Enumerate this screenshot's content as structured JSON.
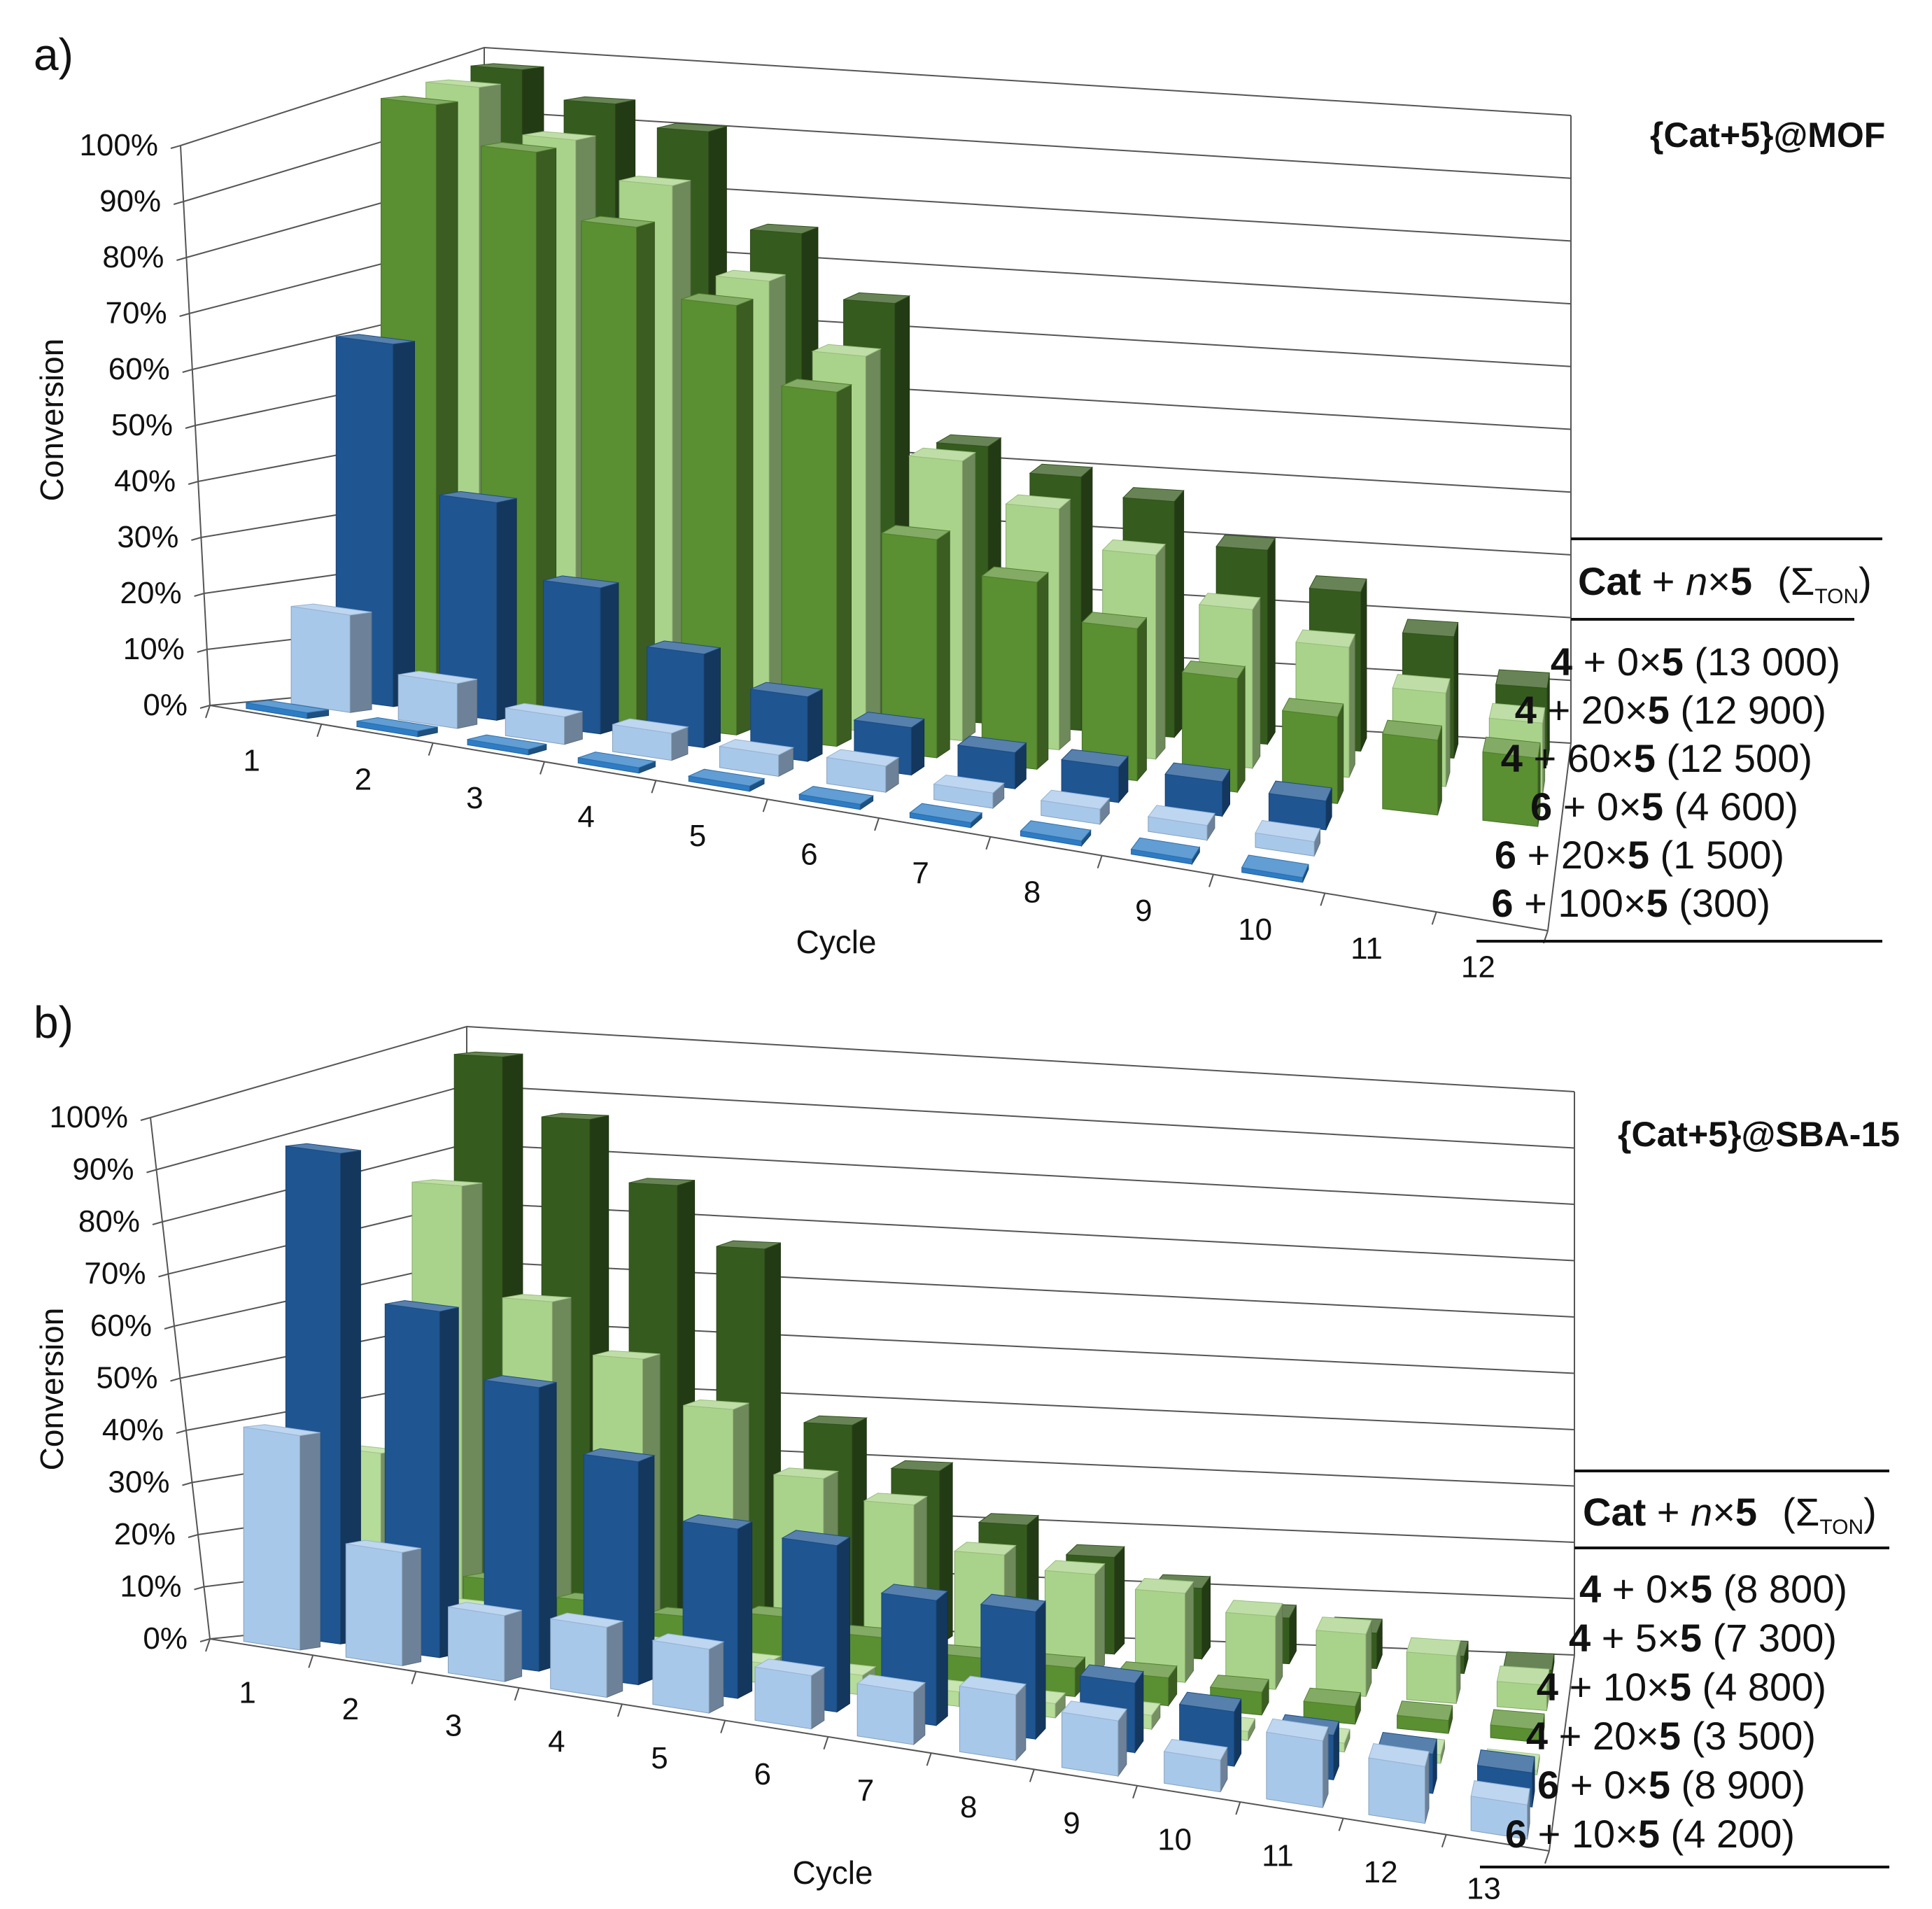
{
  "figure": {
    "panels": [
      {
        "letter": "a)",
        "title": "{Cat+5}@MOF",
        "legend_header": {
          "cat": "Cat",
          "plus": " + ",
          "n": "n",
          "times": "×",
          "five": "5",
          "sigma": "(Σ",
          "sub": "TON",
          "close": ")"
        },
        "legend_entries": [
          {
            "cat": "4",
            "mid": " + 0×",
            "five": "5",
            "ton": " (13 000)",
            "color": "#365b1f"
          },
          {
            "cat": "4",
            "mid": " + 20×",
            "five": "5",
            "ton": " (12 900)",
            "color": "#a9d38a"
          },
          {
            "cat": "4",
            "mid": " + 60×",
            "five": "5",
            "ton": " (12 500)",
            "color": "#5a8f32"
          },
          {
            "cat": "6",
            "mid": " + 0×",
            "five": "5",
            "ton": " (4 600)",
            "color": "#1f5591"
          },
          {
            "cat": "6",
            "mid": " + 20×",
            "five": "5",
            "ton": " (1 500)",
            "color": "#a8c8ea"
          },
          {
            "cat": "6",
            "mid": " + 100×",
            "five": "5",
            "ton": " (300)",
            "color": "#2e7cc4"
          }
        ]
      },
      {
        "letter": "b)",
        "title": "{Cat+5}@SBA-15",
        "legend_header": {
          "cat": "Cat",
          "plus": " + ",
          "n": "n",
          "times": "×",
          "five": "5",
          "sigma": "(Σ",
          "sub": "TON",
          "close": ")"
        },
        "legend_entries": [
          {
            "cat": "4",
            "mid": " + 0×",
            "five": "5",
            "ton": " (8 800)",
            "color": "#365b1f"
          },
          {
            "cat": "4",
            "mid": " + 5×",
            "five": "5",
            "ton": " (7 300)",
            "color": "#a9d38a"
          },
          {
            "cat": "4",
            "mid": " + 10×",
            "five": "5",
            "ton": " (4 800)",
            "color": "#5a8f32"
          },
          {
            "cat": "4",
            "mid": " + 20×",
            "five": "5",
            "ton": " (3 500)",
            "color": "#b5dc98"
          },
          {
            "cat": "6",
            "mid": " + 0×",
            "five": "5",
            "ton": " (8 900)",
            "color": "#1f5591"
          },
          {
            "cat": "6",
            "mid": " + 10×",
            "five": "5",
            "ton": " (4 200)",
            "color": "#a8c8ea"
          }
        ]
      }
    ]
  },
  "chart_data": [
    {
      "type": "bar",
      "subtype": "3d-clustered-depth",
      "title": "{Cat+5}@MOF",
      "xlabel": "Cycle",
      "ylabel": "Conversion",
      "ylim": [
        0,
        100
      ],
      "yticks": [
        "0%",
        "10%",
        "20%",
        "30%",
        "40%",
        "50%",
        "60%",
        "70%",
        "80%",
        "90%",
        "100%"
      ],
      "categories": [
        "1",
        "2",
        "3",
        "4",
        "5",
        "6",
        "7",
        "8",
        "9",
        "10",
        "11",
        "12"
      ],
      "series": [
        {
          "name": "4 + 0×5 (13 000)",
          "color": "#365b1f",
          "values": [
            100,
            98,
            97,
            83,
            74,
            51,
            48,
            46,
            39,
            33,
            26,
            17
          ]
        },
        {
          "name": "4 + 20×5 (12 900)",
          "color": "#a9d38a",
          "values": [
            100,
            95,
            91,
            78,
            68,
            52,
            46,
            40,
            32,
            27,
            20,
            16
          ]
        },
        {
          "name": "4 + 60×5 (12 500)",
          "color": "#5a8f32",
          "values": [
            100,
            96,
            87,
            77,
            65,
            41,
            36,
            30,
            23,
            18,
            16,
            15
          ]
        },
        {
          "name": "6 + 0×5 (4 600)",
          "color": "#1f5591",
          "values": [
            62,
            38,
            26,
            17,
            12,
            9,
            7,
            7,
            7,
            6,
            null,
            null
          ]
        },
        {
          "name": "6 + 20×5 (1 500)",
          "color": "#a8c8ea",
          "values": [
            17,
            8,
            5,
            5,
            4,
            5,
            3,
            3,
            3,
            3,
            null,
            null
          ]
        },
        {
          "name": "6 + 100×5 (300)",
          "color": "#2e7cc4",
          "values": [
            1,
            1,
            1,
            1,
            1,
            1,
            1,
            1,
            1,
            1,
            null,
            null
          ]
        }
      ]
    },
    {
      "type": "bar",
      "subtype": "3d-clustered-depth",
      "title": "{Cat+5}@SBA-15",
      "xlabel": "Cycle",
      "ylabel": "Conversion",
      "ylim": [
        0,
        100
      ],
      "yticks": [
        "0%",
        "10%",
        "20%",
        "30%",
        "40%",
        "50%",
        "60%",
        "70%",
        "80%",
        "90%",
        "100%"
      ],
      "categories": [
        "1",
        "2",
        "3",
        "4",
        "5",
        "6",
        "7",
        "8",
        "9",
        "10",
        "11",
        "12",
        "13"
      ],
      "series": [
        {
          "name": "4 + 0×5 (8 800)",
          "color": "#365b1f",
          "values": [
            98,
            90,
            81,
            72,
            41,
            34,
            25,
            20,
            15,
            10,
            8,
            4,
            2
          ]
        },
        {
          "name": "4 + 5×5 (7 300)",
          "color": "#a9d38a",
          "values": [
            78,
            60,
            52,
            45,
            34,
            31,
            23,
            21,
            19,
            16,
            14,
            11,
            6
          ]
        },
        {
          "name": "4 + 10×5 (4 800)",
          "color": "#5a8f32",
          "values": [
            16,
            11,
            9,
            8,
            10,
            8,
            6,
            6,
            6,
            5,
            4,
            3,
            3
          ]
        },
        {
          "name": "4 + 20×5 (3 500)",
          "color": "#b5dc98",
          "values": [
            34,
            8,
            6,
            5,
            4,
            4,
            3,
            3,
            3,
            2,
            2,
            2,
            1
          ]
        },
        {
          "name": "6 + 0×5 (8 900)",
          "color": "#1f5591",
          "values": [
            92,
            66,
            55,
            44,
            34,
            34,
            26,
            27,
            15,
            12,
            10,
            9,
            8
          ]
        },
        {
          "name": "6 + 10×5 (4 200)",
          "color": "#a8c8ea",
          "values": [
            41,
            22,
            13,
            14,
            13,
            11,
            11,
            14,
            12,
            7,
            15,
            13,
            8
          ]
        }
      ]
    }
  ]
}
